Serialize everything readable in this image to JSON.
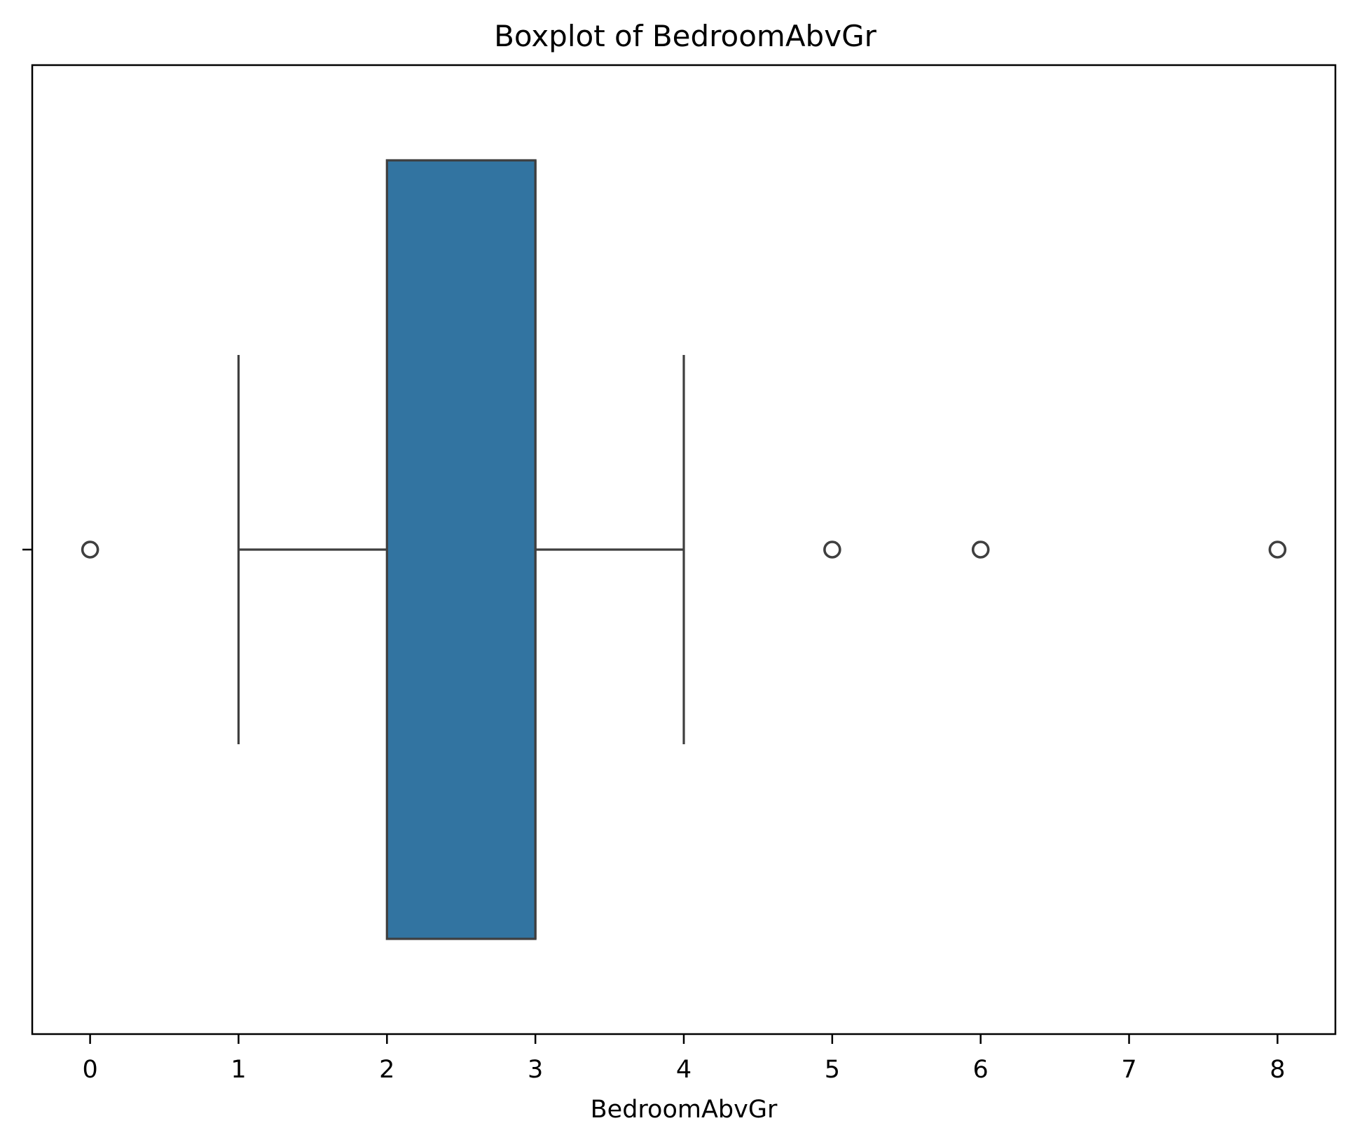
{
  "chart_data": {
    "type": "boxplot",
    "title": "Boxplot of BedroomAbvGr",
    "xlabel": "BedroomAbvGr",
    "ylabel": "",
    "orientation": "horizontal",
    "xlim": [
      -0.39,
      8.39
    ],
    "xticks": [
      0,
      1,
      2,
      3,
      4,
      5,
      6,
      7,
      8
    ],
    "xtick_labels": [
      "0",
      "1",
      "2",
      "3",
      "4",
      "5",
      "6",
      "7",
      "8"
    ],
    "grid": false,
    "legend": "none",
    "series": [
      {
        "whisker_low": 1,
        "q1": 2,
        "median": 3,
        "q3": 3,
        "whisker_high": 4,
        "outliers": [
          0,
          5,
          6,
          8
        ]
      }
    ],
    "colors": {
      "box_fill": "#3274a1",
      "line": "#3f3f3f",
      "axes": "#000000",
      "background": "#ffffff"
    }
  }
}
